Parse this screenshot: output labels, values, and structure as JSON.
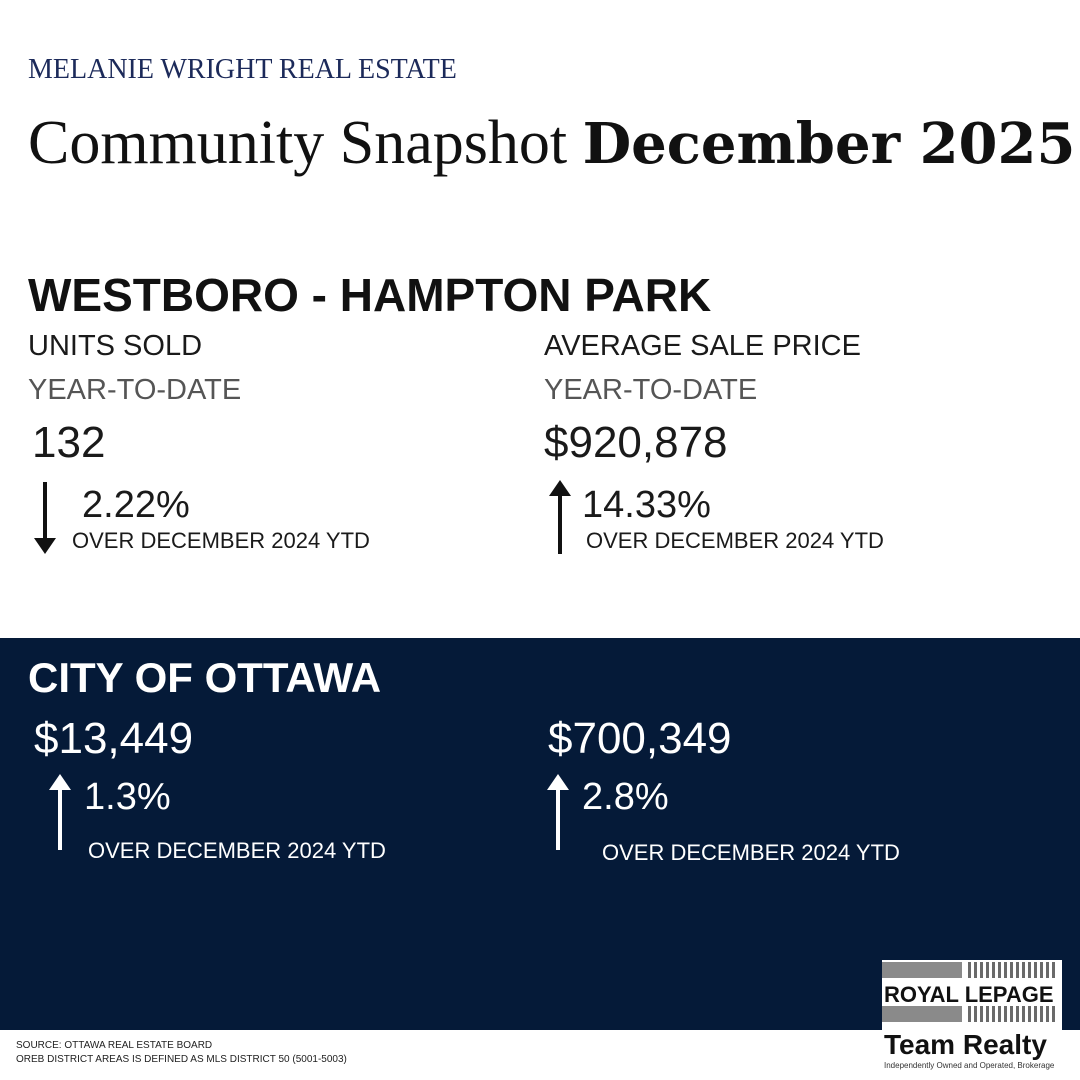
{
  "header": {
    "brand": "MELANIE WRIGHT REAL ESTATE",
    "title_light": "Community Snapshot ",
    "title_bold": "December 2025"
  },
  "community": {
    "name": "WESTBORO - HAMPTON PARK",
    "units": {
      "label": "UNITS SOLD",
      "period": "YEAR-TO-DATE",
      "value": "132",
      "change": "2.22%",
      "direction": "down",
      "comparison": "OVER DECEMBER 2024 YTD"
    },
    "price": {
      "label": "AVERAGE SALE PRICE",
      "period": "YEAR-TO-DATE",
      "value": "$920,878",
      "change": "14.33%",
      "direction": "up",
      "comparison": "OVER DECEMBER 2024 YTD"
    }
  },
  "city": {
    "name": "CITY OF OTTAWA",
    "units": {
      "value": "$13,449",
      "change": "1.3%",
      "direction": "up",
      "comparison": "OVER DECEMBER 2024 YTD"
    },
    "price": {
      "value": "$700,349",
      "change": "2.8%",
      "direction": "up",
      "comparison": "OVER DECEMBER 2024 YTD"
    }
  },
  "footer": {
    "source": "SOURCE: OTTAWA REAL ESTATE BOARD",
    "note": "OREB DISTRICT AREAS IS DEFINED AS MLS DISTRICT 50 (5001-5003)"
  },
  "logo": {
    "line1": "ROYAL LEPAGE",
    "line2": "Team Realty",
    "tagline": "Independently Owned and Operated, Brokerage"
  },
  "colors": {
    "navy": "#051a38",
    "brand_text": "#1c2a5a"
  }
}
